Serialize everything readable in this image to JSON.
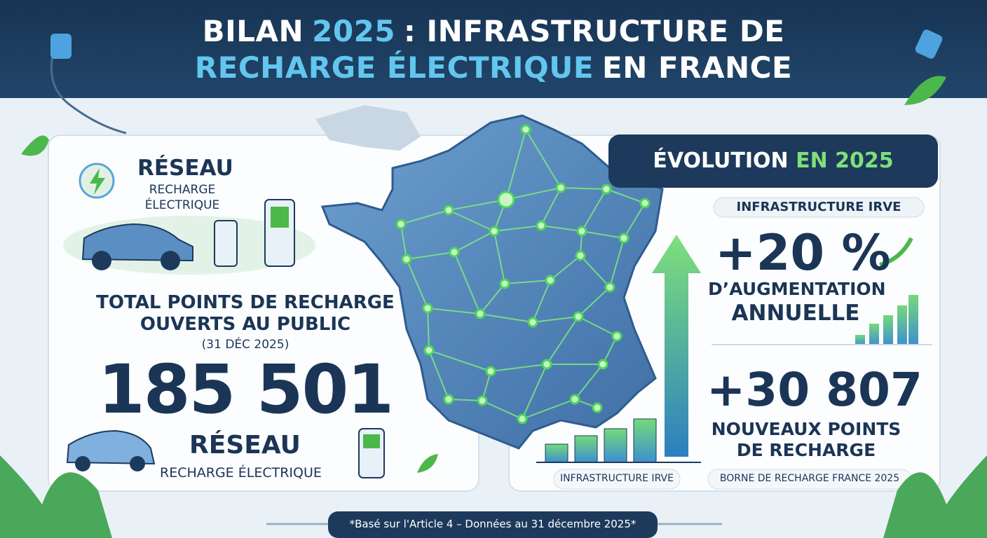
{
  "header": {
    "title_lines": [
      [
        "BILAN",
        "2025",
        ": INFRASTRUCTURE DE"
      ],
      [
        "RECHARGE ÉLECTRIQUE",
        "EN FRANCE"
      ]
    ]
  },
  "left_panel": {
    "network_badge": {
      "title": "RÉSEAU",
      "subtitle_lines": [
        "RECHARGE",
        "ÉLECTRIQUE"
      ]
    },
    "total": {
      "label_lines": [
        "TOTAL POINTS DE RECHARGE",
        "OUVERTS AU PUBLIC"
      ],
      "date": "(31 DÉC 2025)",
      "value": "185 501"
    },
    "bottom_badge": {
      "title": "RÉSEAU",
      "subtitle": "RECHARGE ÉLECTRIQUE"
    }
  },
  "right_panel": {
    "title_parts": [
      "ÉVOLUTION",
      "EN 2025"
    ],
    "section_label": "INFRASTRUCTURE IRVE",
    "growth": {
      "value": "+20 %",
      "label_lines": [
        "D’AUGMENTATION",
        "ANNUELLE"
      ]
    },
    "new_points": {
      "value": "+30 807",
      "label_lines": [
        "NOUVEAUX POINTS",
        "DE RECHARGE"
      ]
    },
    "chart_caption": "INFRASTRUCTURE IRVE",
    "footer_label": "BORNE DE RECHARGE FRANCE 2025"
  },
  "footer": {
    "note": "*Basé sur l'Article 4 – Données au 31 décembre 2025*"
  }
}
